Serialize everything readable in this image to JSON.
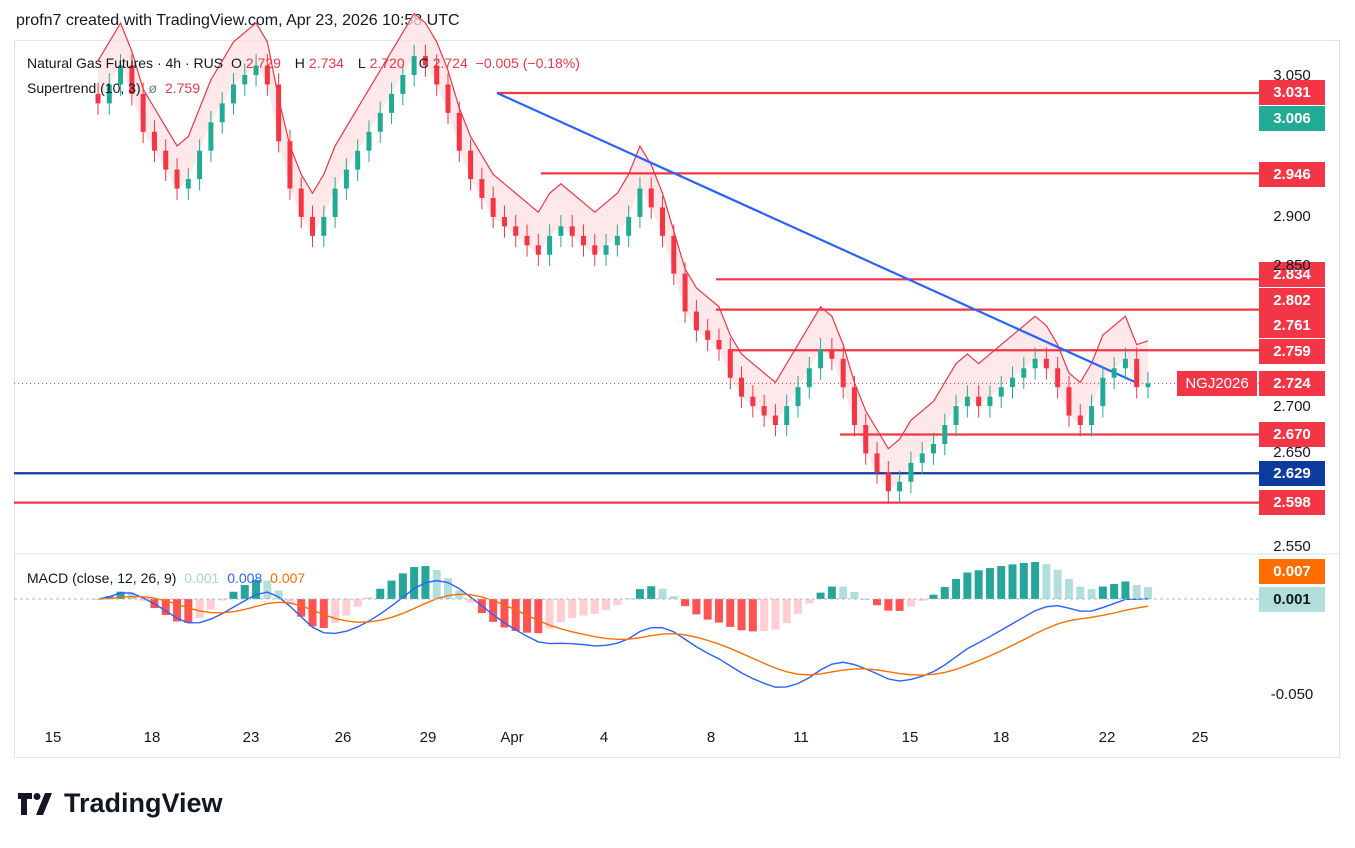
{
  "header": {
    "text": "profn7 created with TradingView.com, Apr 23, 2026 10:58 UTC"
  },
  "legend": {
    "symbol": "Natural Gas Futures · 4h · RUS",
    "o_label": "O",
    "o": "2.729",
    "h_label": "H",
    "h": "2.734",
    "l_label": "L",
    "l": "2.720",
    "c_label": "C",
    "c": "2.724",
    "change": "−0.005 (−0.18%)",
    "supertrend": "Supertrend (10, 3)",
    "supertrend_val": "2.759",
    "macd": "MACD (close, 12, 26, 9)",
    "macd_hist": "0.001",
    "macd_line": "0.008",
    "macd_signal": "0.007"
  },
  "colors": {
    "up": "#22ab94",
    "down": "#f23645",
    "blue": "#2962ff",
    "orange": "#ff6d00",
    "level": "#f23645",
    "support": "#0d3a9e"
  },
  "chart_data": {
    "type": "candlestick",
    "title": "Natural Gas Futures · 4h",
    "x_ticks": [
      "15",
      "18",
      "23",
      "26",
      "29",
      "Apr",
      "4",
      "8",
      "11",
      "15",
      "18",
      "22",
      "25"
    ],
    "y_ticks": [
      "3.050",
      "2.900",
      "2.850",
      "2.700",
      "2.650",
      "2.550"
    ],
    "macd_y_ticks": [
      "-0.050"
    ],
    "ylim": [
      2.55,
      3.07
    ],
    "price_labels": [
      {
        "value": "3.031",
        "color": "#f23645"
      },
      {
        "value": "3.006",
        "color": "#22ab94"
      },
      {
        "value": "2.946",
        "color": "#f23645"
      },
      {
        "value": "2.834",
        "color": "#f23645"
      },
      {
        "value": "2.802",
        "color": "#f23645"
      },
      {
        "value": "2.761",
        "color": "#f23645"
      },
      {
        "value": "2.759",
        "color": "#f23645"
      },
      {
        "value": "2.724",
        "color": "#f23645"
      },
      {
        "value": "2.670",
        "color": "#f23645"
      },
      {
        "value": "2.629",
        "color": "#0d3a9e"
      },
      {
        "value": "2.598",
        "color": "#f23645"
      }
    ],
    "symbol_label": "NGJ2026",
    "macd_labels": [
      {
        "value": "0.007",
        "color": "#ff6d00"
      },
      {
        "value": "0.001",
        "color": "#b2dfdb"
      }
    ],
    "horizontal_levels": [
      3.031,
      2.946,
      2.834,
      2.802,
      2.759,
      2.67,
      2.629,
      2.598
    ],
    "trendline": {
      "from": 3.031,
      "to": 2.724
    },
    "closes": [
      3.02,
      3.04,
      3.06,
      3.03,
      2.99,
      2.97,
      2.95,
      2.93,
      2.94,
      2.97,
      3.0,
      3.02,
      3.04,
      3.05,
      3.06,
      3.04,
      2.98,
      2.93,
      2.9,
      2.88,
      2.9,
      2.93,
      2.95,
      2.97,
      2.99,
      3.01,
      3.03,
      3.05,
      3.07,
      3.06,
      3.04,
      3.01,
      2.97,
      2.94,
      2.92,
      2.9,
      2.89,
      2.88,
      2.87,
      2.86,
      2.88,
      2.89,
      2.88,
      2.87,
      2.86,
      2.87,
      2.88,
      2.9,
      2.93,
      2.91,
      2.88,
      2.84,
      2.8,
      2.78,
      2.77,
      2.76,
      2.73,
      2.71,
      2.7,
      2.69,
      2.68,
      2.7,
      2.72,
      2.74,
      2.76,
      2.75,
      2.72,
      2.68,
      2.65,
      2.63,
      2.61,
      2.62,
      2.64,
      2.65,
      2.66,
      2.68,
      2.7,
      2.71,
      2.7,
      2.71,
      2.72,
      2.73,
      2.74,
      2.75,
      2.74,
      2.72,
      2.69,
      2.68,
      2.7,
      2.73,
      2.74,
      2.75,
      2.72,
      2.724
    ]
  }
}
